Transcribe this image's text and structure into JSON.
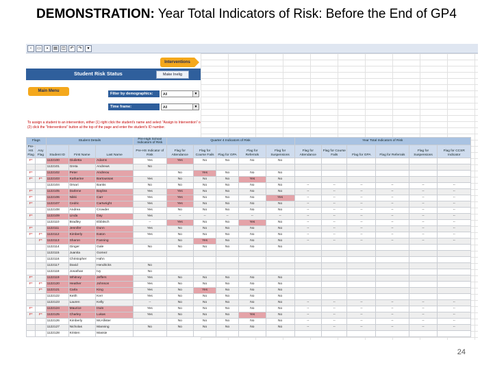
{
  "slide": {
    "title_bold": "DEMONSTRATION:",
    "title_rest": " Year Total Indicators of Risk:  Before the End of GP4",
    "page_number": "24"
  },
  "toolbar": {
    "icons": [
      "new-icon",
      "open-icon",
      "save-icon",
      "print-icon",
      "preview-icon",
      "undo-icon",
      "redo-icon",
      "dropdown-icon"
    ]
  },
  "app": {
    "interventions_label": "Interventions",
    "banner_title": "Student Risk Status",
    "banner_button": "Make Inelig",
    "main_menu_label": "Main Menu",
    "filter_demo_label": "Filter by demographics:",
    "filter_demo_value": "All",
    "timeframe_label": "Time frame:",
    "timeframe_value": "All",
    "instructions": "To assign a student to an intervention, either (1) right click the student's name and select \"Assign to Intervention\" or (2) click the \"Interventions\" button at the top of the page and enter the student's ID number."
  },
  "table": {
    "groups": [
      "Flags",
      "Student Details",
      "Pre-High School Indicators of Risk",
      "Quarter 4 Indicators of Risk",
      "Year Total Indicators of Risk"
    ],
    "columns": [
      "Pre-HS Flag",
      "Any Flag",
      "Student ID",
      "First Name",
      "Last Name",
      "Pre-HS Indicator of Risk",
      "Flag for Attendance",
      "Flag for Course Fails",
      "Flag for GPA",
      "Flag for Referrals",
      "Flag for Suspensions",
      "Flag for Attendance",
      "Flag for Course Fails",
      "Flag for GPA",
      "Flag for Referrals",
      "Flag for Suspensions",
      "Flag for CCSR Indicator"
    ],
    "rows": [
      [
        "F*",
        "",
        "1122100",
        "Giulietta",
        "Adams",
        "Yes",
        "Yes",
        "No",
        "No",
        "No",
        "No",
        "",
        "",
        "",
        "",
        "",
        ""
      ],
      [
        "",
        "",
        "1122101",
        "Greta",
        "Andrews",
        "No",
        "",
        "",
        "",
        "",
        "",
        "",
        "",
        "",
        "",
        "",
        ""
      ],
      [
        "F*",
        "",
        "1122102",
        "Peter",
        "Andreou",
        "",
        "No",
        "Yes",
        "No",
        "No",
        "No",
        "",
        "",
        "",
        "",
        "",
        ""
      ],
      [
        "F*",
        "F*",
        "1122103",
        "Katharine",
        "Bartoussas",
        "Yes",
        "No",
        "No",
        "No",
        "Yes",
        "No",
        "",
        "",
        "",
        "",
        "",
        ""
      ],
      [
        "",
        "",
        "1122104",
        "Omari",
        "Banks",
        "No",
        "No",
        "No",
        "No",
        "No",
        "No",
        "--",
        "--",
        "--",
        "--",
        "--",
        "--"
      ],
      [
        "F*",
        "",
        "1122105",
        "Darlene",
        "Bayliss",
        "Yes",
        "Yes",
        "No",
        "No",
        "No",
        "No",
        "--",
        "--",
        "--",
        "--",
        "--",
        "--"
      ],
      [
        "F*",
        "",
        "1122106",
        "Nikki",
        "Carr",
        "Yes",
        "Yes",
        "No",
        "No",
        "No",
        "Yes",
        "--",
        "--",
        "--",
        "--",
        "--",
        "--"
      ],
      [
        "F*",
        "",
        "1122107",
        "Cedric",
        "Cartwright",
        "Yes",
        "Yes",
        "No",
        "No",
        "No",
        "No",
        "--",
        "--",
        "--",
        "--",
        "--",
        "--"
      ],
      [
        "",
        "",
        "1122108",
        "Andrea",
        "Crowder",
        "Yes",
        "No",
        "No",
        "No",
        "No",
        "No",
        "--",
        "--",
        "--",
        "--",
        "--",
        "--"
      ],
      [
        "F*",
        "",
        "1122109",
        "Linda",
        "Day",
        "Yes",
        "--",
        "--",
        "--",
        "--",
        "--",
        "--",
        "--",
        "--",
        "--",
        "--",
        "--"
      ],
      [
        "",
        "",
        "1122110",
        "Bradley",
        "Ebbitsch",
        "--",
        "Yes",
        "No",
        "No",
        "Yes",
        "No",
        "--",
        "--",
        "--",
        "--",
        "--",
        "--"
      ],
      [
        "F*",
        "",
        "1122111",
        "Jennifer",
        "Dunn",
        "Yes",
        "No",
        "No",
        "No",
        "No",
        "No",
        "--",
        "--",
        "--",
        "--",
        "--",
        "--"
      ],
      [
        "F*",
        "F*",
        "1122112",
        "Kimberly",
        "Eaton",
        "Yes",
        "No",
        "No",
        "No",
        "No",
        "No",
        "--",
        "--",
        "--",
        "--",
        "--",
        "--"
      ],
      [
        "",
        "F*",
        "1122113",
        "Sharon",
        "Fanning",
        "",
        "No",
        "Yes",
        "No",
        "No",
        "No",
        "--",
        "--",
        "--",
        "--",
        "--",
        "--"
      ],
      [
        "",
        "",
        "1122114",
        "Ginger",
        "Gale",
        "No",
        "No",
        "No",
        "No",
        "No",
        "No",
        "",
        "",
        "",
        "",
        "",
        ""
      ],
      [
        "",
        "",
        "1122115",
        "Juanita",
        "Gomez",
        "",
        "",
        "",
        "",
        "",
        "",
        "",
        "",
        "",
        "",
        "",
        ""
      ],
      [
        "",
        "",
        "1122116",
        "Christopher",
        "Hahn",
        "",
        "",
        "",
        "",
        "",
        "",
        "",
        "",
        "",
        "",
        "",
        ""
      ],
      [
        "",
        "",
        "1122117",
        "David",
        "Hendricks",
        "No",
        "",
        "",
        "",
        "",
        "",
        "",
        "",
        "",
        "",
        "",
        ""
      ],
      [
        "",
        "",
        "1122118",
        "Jonathan",
        "Ivy",
        "No",
        "",
        "",
        "",
        "",
        "",
        "",
        "",
        "",
        "",
        "",
        ""
      ],
      [
        "F*",
        "",
        "1122119",
        "Whitney",
        "Jeffers",
        "Yes",
        "No",
        "No",
        "No",
        "No",
        "No",
        "",
        "",
        "",
        "",
        "",
        ""
      ],
      [
        "F*",
        "F*",
        "1122120",
        "Heather",
        "Johnson",
        "Yes",
        "No",
        "No",
        "No",
        "No",
        "No",
        "",
        "",
        "",
        "",
        "",
        ""
      ],
      [
        "",
        "F*",
        "1122121",
        "Carla",
        "King",
        "Yes",
        "No",
        "Yes",
        "No",
        "No",
        "No",
        "",
        "",
        "",
        "",
        "",
        ""
      ],
      [
        "",
        "",
        "1122122",
        "Keith",
        "Kerr",
        "Yes",
        "No",
        "No",
        "No",
        "No",
        "No",
        "",
        "",
        "",
        "",
        "",
        ""
      ],
      [
        "",
        "",
        "1122123",
        "Lauren",
        "Kelly",
        "--",
        "No",
        "No",
        "No",
        "No",
        "No",
        "--",
        "--",
        "--",
        "--",
        "--",
        "--"
      ],
      [
        "F*",
        "",
        "1122124",
        "Maurice",
        "Irwin",
        "Yes",
        "No",
        "No",
        "No",
        "No",
        "No",
        "--",
        "--",
        "--",
        "--",
        "--",
        "--"
      ],
      [
        "F*",
        "F*",
        "1122125",
        "Charley",
        "Lukas",
        "Yes",
        "No",
        "No",
        "No",
        "Yes",
        "No",
        "--",
        "--",
        "--",
        "--",
        "--",
        "--"
      ],
      [
        "",
        "",
        "1122126",
        "Kimberly",
        "McAllister",
        "",
        "No",
        "No",
        "No",
        "No",
        "No",
        "--",
        "--",
        "--",
        "--",
        "--",
        "--"
      ],
      [
        "",
        "",
        "1122127",
        "Nicholas",
        "Manning",
        "No",
        "No",
        "No",
        "No",
        "No",
        "No",
        "--",
        "--",
        "--",
        "--",
        "--",
        "--"
      ],
      [
        "",
        "",
        "1122128",
        "Kristen",
        "Massie",
        "",
        "",
        "",
        "",
        "",
        "",
        "",
        "",
        "",
        "",
        "",
        ""
      ]
    ],
    "highlight_columns": [
      4,
      6,
      7,
      9,
      10
    ]
  }
}
